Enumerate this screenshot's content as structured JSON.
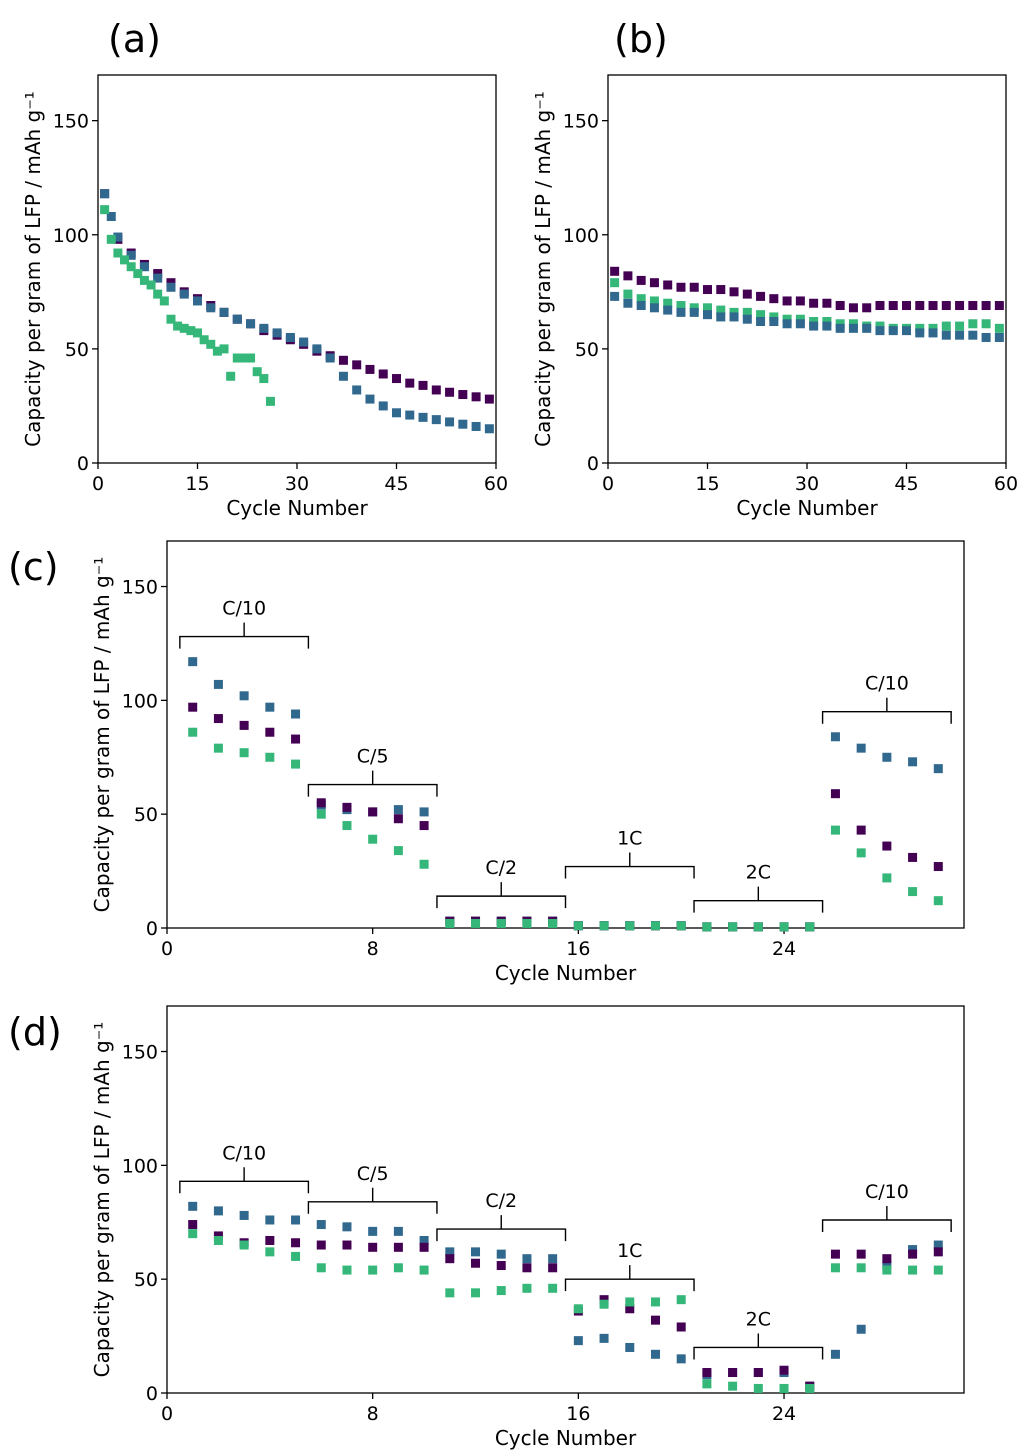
{
  "colors": {
    "purple": "#440154",
    "blue": "#31688e",
    "green": "#35b779",
    "axis": "#000000"
  },
  "chart_data": [
    {
      "panel_label": "(a)",
      "type": "scatter",
      "xlabel": "Cycle Number",
      "ylabel": "Capacity per gram of LFP / mAh g⁻¹",
      "xlim": [
        0,
        60
      ],
      "ylim": [
        0,
        170
      ],
      "xticks": [
        0,
        15,
        30,
        45,
        60
      ],
      "yticks": [
        0,
        50,
        100,
        150
      ],
      "grid": false,
      "legend": "none",
      "series": [
        {
          "color": "purple",
          "x": [
            1,
            3,
            5,
            7,
            9,
            11,
            13,
            15,
            17,
            19,
            21,
            23,
            25,
            27,
            29,
            31,
            33,
            35,
            37,
            39,
            41,
            43,
            45,
            47,
            49,
            51,
            53,
            55,
            57,
            59
          ],
          "y": [
            118,
            98,
            92,
            87,
            83,
            79,
            75,
            72,
            69,
            66,
            63,
            61,
            58,
            56,
            54,
            52,
            49,
            47,
            45,
            43,
            41,
            39,
            37,
            35,
            34,
            32,
            31,
            30,
            29,
            28
          ]
        },
        {
          "color": "blue",
          "x": [
            1,
            2,
            3,
            5,
            7,
            9,
            11,
            13,
            15,
            17,
            19,
            21,
            23,
            25,
            27,
            29,
            31,
            33,
            35,
            37,
            39,
            41,
            43,
            45,
            47,
            49,
            51,
            53,
            55,
            57,
            59
          ],
          "y": [
            118,
            108,
            99,
            91,
            86,
            81,
            77,
            74,
            71,
            68,
            66,
            63,
            61,
            59,
            57,
            55,
            53,
            50,
            46,
            38,
            32,
            28,
            25,
            22,
            21,
            20,
            19,
            18,
            17,
            16,
            15
          ]
        },
        {
          "color": "green",
          "x": [
            1,
            2,
            3,
            4,
            5,
            6,
            7,
            8,
            9,
            10,
            11,
            12,
            13,
            14,
            15,
            16,
            17,
            18,
            19,
            20,
            21,
            22,
            23,
            24,
            25,
            26
          ],
          "y": [
            111,
            98,
            92,
            89,
            86,
            83,
            80,
            78,
            74,
            71,
            63,
            60,
            59,
            58,
            57,
            54,
            52,
            49,
            50,
            38,
            46,
            46,
            46,
            40,
            37,
            27
          ]
        }
      ]
    },
    {
      "panel_label": "(b)",
      "type": "scatter",
      "xlabel": "Cycle Number",
      "ylabel": "Capacity per gram of LFP / mAh g⁻¹",
      "xlim": [
        0,
        60
      ],
      "ylim": [
        0,
        170
      ],
      "xticks": [
        0,
        15,
        30,
        45,
        60
      ],
      "yticks": [
        0,
        50,
        100,
        150
      ],
      "grid": false,
      "legend": "none",
      "series": [
        {
          "color": "purple",
          "x": [
            1,
            3,
            5,
            7,
            9,
            11,
            13,
            15,
            17,
            19,
            21,
            23,
            25,
            27,
            29,
            31,
            33,
            35,
            37,
            39,
            41,
            43,
            45,
            47,
            49,
            51,
            53,
            55,
            57,
            59
          ],
          "y": [
            84,
            82,
            80,
            79,
            78,
            77,
            77,
            76,
            76,
            75,
            74,
            73,
            72,
            71,
            71,
            70,
            70,
            69,
            68,
            68,
            69,
            69,
            69,
            69,
            69,
            69,
            69,
            69,
            69,
            69
          ]
        },
        {
          "color": "green",
          "x": [
            1,
            3,
            5,
            7,
            9,
            11,
            13,
            15,
            17,
            19,
            21,
            23,
            25,
            27,
            29,
            31,
            33,
            35,
            37,
            39,
            41,
            43,
            45,
            47,
            49,
            51,
            53,
            55,
            57,
            59
          ],
          "y": [
            79,
            74,
            72,
            71,
            70,
            69,
            68,
            68,
            67,
            66,
            66,
            65,
            64,
            63,
            63,
            62,
            62,
            61,
            61,
            60,
            60,
            59,
            59,
            59,
            59,
            60,
            60,
            61,
            61,
            59
          ]
        },
        {
          "color": "blue",
          "x": [
            1,
            3,
            5,
            7,
            9,
            11,
            13,
            15,
            17,
            19,
            21,
            23,
            25,
            27,
            29,
            31,
            33,
            35,
            37,
            39,
            41,
            43,
            45,
            47,
            49,
            51,
            53,
            55,
            57,
            59
          ],
          "y": [
            73,
            70,
            69,
            68,
            67,
            66,
            66,
            65,
            64,
            64,
            63,
            62,
            62,
            61,
            61,
            60,
            60,
            59,
            59,
            59,
            58,
            58,
            58,
            57,
            57,
            56,
            56,
            56,
            55,
            55
          ]
        }
      ]
    },
    {
      "panel_label": "(c)",
      "type": "scatter",
      "xlabel": "Cycle Number",
      "ylabel": "Capacity per gram of LFP / mAh g⁻¹",
      "xlim": [
        0,
        31
      ],
      "ylim": [
        0,
        170
      ],
      "xticks": [
        0,
        8,
        16,
        24
      ],
      "yticks": [
        0,
        50,
        100,
        150
      ],
      "grid": false,
      "legend": "none",
      "annotations": [
        {
          "label": "C/10",
          "x0": 0.5,
          "x1": 5.5,
          "y": 128
        },
        {
          "label": "C/5",
          "x0": 5.5,
          "x1": 10.5,
          "y": 63
        },
        {
          "label": "C/2",
          "x0": 10.5,
          "x1": 15.5,
          "y": 14
        },
        {
          "label": "1C",
          "x0": 15.5,
          "x1": 20.5,
          "y": 27
        },
        {
          "label": "2C",
          "x0": 20.5,
          "x1": 25.5,
          "y": 12
        },
        {
          "label": "C/10",
          "x0": 25.5,
          "x1": 30.5,
          "y": 95
        }
      ],
      "series": [
        {
          "color": "blue",
          "x": [
            1,
            2,
            3,
            4,
            5,
            6,
            7,
            8,
            9,
            10,
            11,
            12,
            13,
            14,
            15,
            16,
            17,
            18,
            19,
            20,
            21,
            22,
            23,
            24,
            25,
            26,
            27,
            28,
            29,
            30
          ],
          "y": [
            117,
            107,
            102,
            97,
            94,
            54,
            52,
            51,
            52,
            51,
            3,
            3,
            3,
            3,
            3,
            1,
            1,
            1,
            1,
            1,
            0.5,
            0.5,
            0.5,
            0.5,
            0.5,
            84,
            79,
            75,
            73,
            70
          ]
        },
        {
          "color": "purple",
          "x": [
            1,
            2,
            3,
            4,
            5,
            6,
            7,
            8,
            9,
            10,
            11,
            12,
            13,
            14,
            15,
            16,
            17,
            18,
            19,
            20,
            21,
            22,
            23,
            24,
            25,
            26,
            27,
            28,
            29,
            30
          ],
          "y": [
            97,
            92,
            89,
            86,
            83,
            55,
            53,
            51,
            48,
            45,
            3,
            3,
            3,
            3,
            3,
            1,
            1,
            1,
            1,
            1,
            0.5,
            0.5,
            0.5,
            0.5,
            0.5,
            59,
            43,
            36,
            31,
            27
          ]
        },
        {
          "color": "green",
          "x": [
            1,
            2,
            3,
            4,
            5,
            6,
            7,
            8,
            9,
            10,
            11,
            12,
            13,
            14,
            15,
            16,
            17,
            18,
            19,
            20,
            21,
            22,
            23,
            24,
            25,
            26,
            27,
            28,
            29,
            30
          ],
          "y": [
            86,
            79,
            77,
            75,
            72,
            50,
            45,
            39,
            34,
            28,
            2,
            2,
            2,
            2,
            2,
            1,
            1,
            1,
            1,
            1,
            0.5,
            0.5,
            0.5,
            0.5,
            0.5,
            43,
            33,
            22,
            16,
            12
          ]
        }
      ]
    },
    {
      "panel_label": "(d)",
      "type": "scatter",
      "xlabel": "Cycle Number",
      "ylabel": "Capacity per gram of LFP / mAh g⁻¹",
      "xlim": [
        0,
        31
      ],
      "ylim": [
        0,
        170
      ],
      "xticks": [
        0,
        8,
        16,
        24
      ],
      "yticks": [
        0,
        50,
        100,
        150
      ],
      "grid": false,
      "legend": "none",
      "annotations": [
        {
          "label": "C/10",
          "x0": 0.5,
          "x1": 5.5,
          "y": 93
        },
        {
          "label": "C/5",
          "x0": 5.5,
          "x1": 10.5,
          "y": 84
        },
        {
          "label": "C/2",
          "x0": 10.5,
          "x1": 15.5,
          "y": 72
        },
        {
          "label": "1C",
          "x0": 15.5,
          "x1": 20.5,
          "y": 50
        },
        {
          "label": "2C",
          "x0": 20.5,
          "x1": 25.5,
          "y": 20
        },
        {
          "label": "C/10",
          "x0": 25.5,
          "x1": 30.5,
          "y": 76
        }
      ],
      "series": [
        {
          "color": "blue",
          "x": [
            1,
            2,
            3,
            4,
            5,
            6,
            7,
            8,
            9,
            10,
            11,
            12,
            13,
            14,
            15,
            16,
            17,
            18,
            19,
            20,
            21,
            22,
            23,
            24,
            25,
            26,
            27,
            28,
            29,
            30
          ],
          "y": [
            82,
            80,
            78,
            76,
            76,
            74,
            73,
            71,
            71,
            67,
            62,
            62,
            61,
            59,
            59,
            23,
            24,
            20,
            17,
            15,
            8,
            9,
            9,
            9,
            3,
            17,
            28,
            56,
            63,
            65
          ]
        },
        {
          "color": "purple",
          "x": [
            1,
            2,
            3,
            4,
            5,
            6,
            7,
            8,
            9,
            10,
            11,
            12,
            13,
            14,
            15,
            16,
            17,
            18,
            19,
            20,
            21,
            22,
            23,
            24,
            25,
            26,
            27,
            28,
            29,
            30
          ],
          "y": [
            74,
            69,
            66,
            67,
            66,
            65,
            65,
            64,
            64,
            64,
            59,
            57,
            56,
            55,
            55,
            36,
            41,
            37,
            32,
            29,
            9,
            9,
            9,
            10,
            3,
            61,
            61,
            59,
            61,
            62
          ]
        },
        {
          "color": "green",
          "x": [
            1,
            2,
            3,
            4,
            5,
            6,
            7,
            8,
            9,
            10,
            11,
            12,
            13,
            14,
            15,
            16,
            17,
            18,
            19,
            20,
            21,
            22,
            23,
            24,
            25,
            26,
            27,
            28,
            29,
            30
          ],
          "y": [
            70,
            67,
            65,
            62,
            60,
            55,
            54,
            54,
            55,
            54,
            44,
            44,
            45,
            46,
            46,
            37,
            39,
            40,
            40,
            41,
            4,
            3,
            2,
            2,
            2,
            55,
            55,
            54,
            54,
            54
          ]
        }
      ]
    }
  ]
}
